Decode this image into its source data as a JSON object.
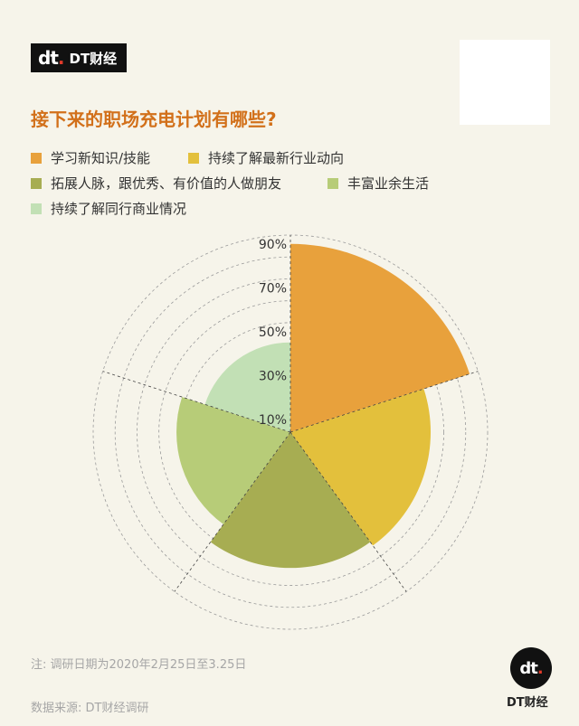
{
  "brand": {
    "logo_mark": "dt",
    "logo_text": "DT财经"
  },
  "title": "接下来的职场充电计划有哪些?",
  "legend": [
    {
      "label": "学习新知识/技能",
      "color": "#e8a13c"
    },
    {
      "label": "持续了解最新行业动向",
      "color": "#e3c03c"
    },
    {
      "label": "拓展人脉，跟优秀、有价值的人做朋友",
      "color": "#a7ad52"
    },
    {
      "label": "丰富业余生活",
      "color": "#b7cc78"
    },
    {
      "label": "持续了解同行商业情况",
      "color": "#c2e0b5"
    }
  ],
  "chart_data": {
    "type": "polar-area",
    "categories": [
      "学习新知识/技能",
      "持续了解最新行业动向",
      "拓展人脉，跟优秀、有价值的人做朋友",
      "丰富业余生活",
      "持续了解同行商业情况"
    ],
    "values": [
      86,
      64,
      62,
      52,
      41
    ],
    "colors": [
      "#e8a13c",
      "#e3c03c",
      "#a7ad52",
      "#b7cc78",
      "#c2e0b5"
    ],
    "rlim": [
      0,
      90
    ],
    "tick_labels": [
      "10%",
      "30%",
      "50%",
      "70%",
      "90%"
    ],
    "tick_values": [
      10,
      30,
      50,
      70,
      90
    ],
    "grid": true
  },
  "footer": {
    "note": "注: 调研日期为2020年2月25日至3.25日",
    "source": "数据来源: DT财经调研"
  }
}
